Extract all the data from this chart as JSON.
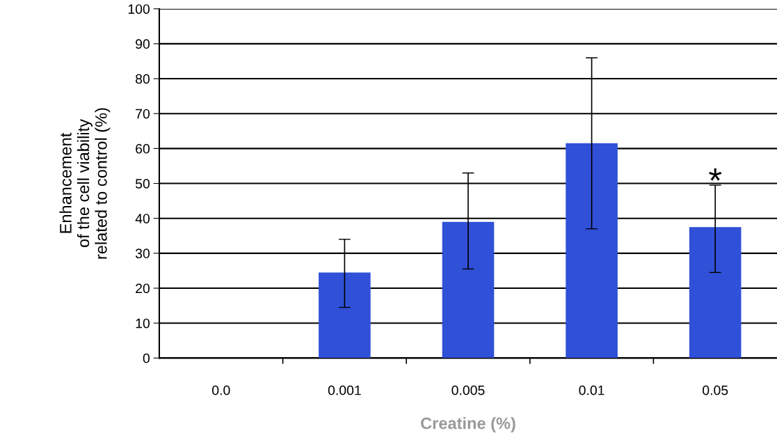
{
  "chart_data": {
    "type": "bar",
    "xlabel": "Creatine (%)",
    "ylabel": "Enhancement\nof the cell viability\nrelated to control (%)",
    "categories": [
      "0.0",
      "0.001",
      "0.005",
      "0.01",
      "0.05"
    ],
    "values": [
      0,
      24.5,
      39,
      61.5,
      37.5
    ],
    "color": "#3050d8",
    "errors": [
      null,
      [
        14.5,
        34
      ],
      [
        25.5,
        53
      ],
      [
        37,
        86
      ],
      [
        24.5,
        49.5
      ]
    ],
    "ylim": [
      0,
      100
    ],
    "yticks": [
      0,
      10,
      20,
      30,
      40,
      50,
      60,
      70,
      80,
      90,
      100
    ],
    "grid": "y",
    "annotations": [
      "*"
    ]
  }
}
